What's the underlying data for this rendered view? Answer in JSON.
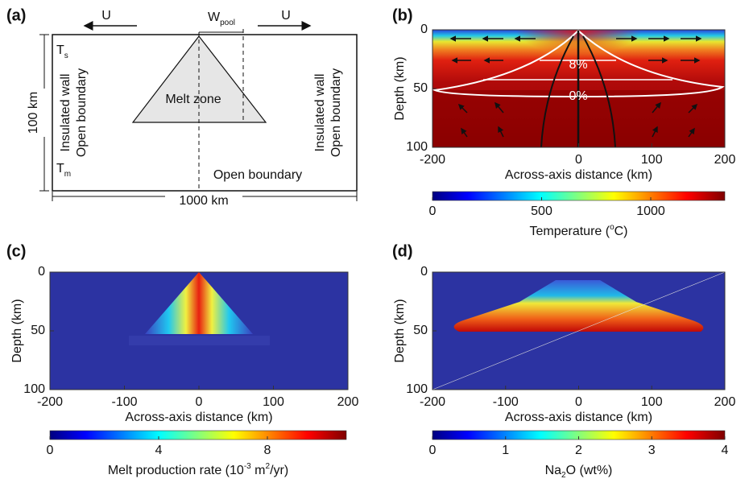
{
  "panels": [
    {
      "label": "(a)",
      "u_left": "U",
      "u_right": "U",
      "w_pool": {
        "main": "W",
        "sub": "pool"
      },
      "melt_zone": "Melt zone",
      "t_s": {
        "main": "T",
        "sub": "s"
      },
      "t_m": {
        "main": "T",
        "sub": "m"
      },
      "depth": "100 km",
      "width": "1000 km",
      "left_wall": [
        "Insulated wall",
        "Open boundary"
      ],
      "right_wall": [
        "Insulated wall",
        "Open boundary"
      ],
      "bottom": "Open boundary"
    },
    {
      "label": "(b)",
      "y_label": "Depth (km)",
      "x_label": "Across-axis distance (km)",
      "yticks": [
        0,
        50,
        100
      ],
      "xticks": [
        -200,
        0,
        100,
        200
      ],
      "contours": [
        "8%",
        "0%"
      ],
      "colorbar": {
        "ticks": [
          0,
          500,
          1000
        ],
        "label": [
          "Temperature (",
          "o",
          "C)"
        ]
      }
    },
    {
      "label": "(c)",
      "y_label": "Depth (km)",
      "x_label": "Across-axis distance (km)",
      "yticks": [
        0,
        50,
        100
      ],
      "xticks": [
        -200,
        -100,
        0,
        100,
        200
      ],
      "colorbar": {
        "ticks": [
          0,
          4,
          8
        ],
        "label": [
          "Melt production rate (10",
          "-3",
          " m",
          "2",
          "/yr)"
        ]
      }
    },
    {
      "label": "(d)",
      "y_label": "Depth (km)",
      "x_label": "Across-axis distance (km)",
      "yticks": [
        0,
        50,
        100
      ],
      "xticks": [
        -200,
        -100,
        0,
        100,
        200
      ],
      "colorbar": {
        "ticks": [
          0,
          1,
          2,
          3,
          4
        ],
        "label": [
          "Na",
          "2",
          "O (wt%)"
        ]
      }
    }
  ]
}
